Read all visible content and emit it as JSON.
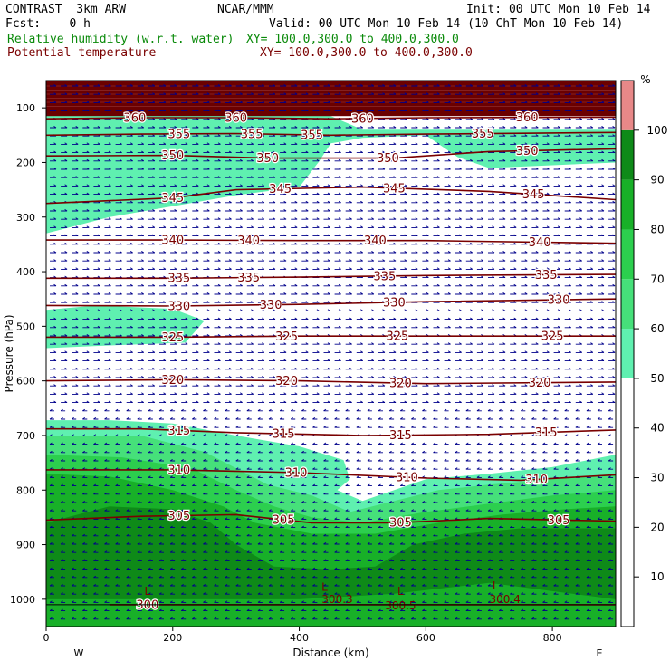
{
  "header": {
    "model": "CONTRAST  3km ARW",
    "org": "NCAR/MMM",
    "init": "Init: 00 UTC Mon 10 Feb 14",
    "fcst": "Fcst:    0 h",
    "valid": "Valid: 00 UTC Mon 10 Feb 14 (10 ChT Mon 10 Feb 14)",
    "field1_name": "Relative humidity (w.r.t. water)",
    "field1_xy": "XY= 100.0,300.0 to 400.0,300.0",
    "field2_name": "Potential temperature",
    "field2_xy": "XY= 100.0,300.0 to 400.0,300.0"
  },
  "colors": {
    "rh_green_text": "#0a8a0a",
    "theta_text": "#7a0000",
    "theta_line": "#7a0000",
    "wind_arrow": "#00008b",
    "rh_50": "#5ff0b0",
    "rh_60": "#46e07a",
    "rh_70": "#2ccf4e",
    "rh_80": "#18b028",
    "rh_90": "#0e8a18",
    "rh_100": "#e88888",
    "top_band": "#6b0000"
  },
  "chart_data": {
    "type": "cross-section",
    "title": "",
    "xlabel": "Distance (km)",
    "ylabel": "Pressure (hPa)",
    "xlim": [
      0,
      900
    ],
    "ylim": [
      1050,
      50
    ],
    "x_ticks": [
      0,
      200,
      400,
      600,
      800
    ],
    "y_ticks": [
      100,
      200,
      300,
      400,
      500,
      600,
      700,
      800,
      900,
      1000
    ],
    "x_end_labels": {
      "left": "W",
      "right": "E"
    },
    "colorbar": {
      "unit": "%",
      "ticks": [
        10,
        20,
        30,
        40,
        50,
        60,
        70,
        80,
        90,
        100
      ]
    },
    "theta_contours": [
      {
        "value": 360,
        "label": "360",
        "points": [
          [
            0,
            120
          ],
          [
            150,
            118
          ],
          [
            300,
            118
          ],
          [
            450,
            120
          ],
          [
            600,
            118
          ],
          [
            900,
            117
          ]
        ],
        "label_x": [
          140,
          300,
          500,
          760
        ]
      },
      {
        "value": 355,
        "label": "355",
        "points": [
          [
            0,
            150
          ],
          [
            150,
            148
          ],
          [
            300,
            147
          ],
          [
            450,
            150
          ],
          [
            600,
            148
          ],
          [
            900,
            145
          ]
        ],
        "label_x": [
          210,
          325,
          420,
          690
        ]
      },
      {
        "value": 350,
        "label": "350",
        "points": [
          [
            0,
            188
          ],
          [
            200,
            187
          ],
          [
            350,
            192
          ],
          [
            550,
            192
          ],
          [
            700,
            180
          ],
          [
            900,
            175
          ]
        ],
        "label_x": [
          200,
          350,
          540,
          760
        ]
      },
      {
        "value": 345,
        "label": "345",
        "points": [
          [
            0,
            275
          ],
          [
            200,
            265
          ],
          [
            300,
            250
          ],
          [
            500,
            245
          ],
          [
            700,
            253
          ],
          [
            900,
            268
          ]
        ],
        "label_x": [
          200,
          370,
          550,
          770
        ]
      },
      {
        "value": 340,
        "label": "340",
        "points": [
          [
            0,
            342
          ],
          [
            200,
            342
          ],
          [
            400,
            343
          ],
          [
            600,
            343
          ],
          [
            900,
            348
          ]
        ],
        "label_x": [
          200,
          320,
          520,
          780
        ]
      },
      {
        "value": 335,
        "label": "335",
        "points": [
          [
            0,
            412
          ],
          [
            200,
            412
          ],
          [
            400,
            410
          ],
          [
            600,
            407
          ],
          [
            900,
            405
          ]
        ],
        "label_x": [
          210,
          320,
          535,
          790
        ]
      },
      {
        "value": 330,
        "label": "330",
        "points": [
          [
            0,
            462
          ],
          [
            200,
            463
          ],
          [
            400,
            460
          ],
          [
            600,
            455
          ],
          [
            900,
            450
          ]
        ],
        "label_x": [
          210,
          355,
          550,
          810
        ]
      },
      {
        "value": 325,
        "label": "325",
        "points": [
          [
            0,
            520
          ],
          [
            200,
            520
          ],
          [
            400,
            518
          ],
          [
            600,
            518
          ],
          [
            900,
            518
          ]
        ],
        "label_x": [
          200,
          380,
          555,
          800
        ]
      },
      {
        "value": 320,
        "label": "320",
        "points": [
          [
            0,
            600
          ],
          [
            200,
            598
          ],
          [
            400,
            600
          ],
          [
            600,
            605
          ],
          [
            900,
            602
          ]
        ],
        "label_x": [
          200,
          380,
          560,
          780
        ]
      },
      {
        "value": 315,
        "label": "315",
        "points": [
          [
            0,
            688
          ],
          [
            150,
            688
          ],
          [
            300,
            695
          ],
          [
            500,
            700
          ],
          [
            700,
            698
          ],
          [
            900,
            690
          ]
        ],
        "label_x": [
          210,
          375,
          560,
          790
        ]
      },
      {
        "value": 310,
        "label": "310",
        "points": [
          [
            0,
            763
          ],
          [
            200,
            763
          ],
          [
            400,
            768
          ],
          [
            600,
            778
          ],
          [
            750,
            782
          ],
          [
            900,
            772
          ]
        ],
        "label_x": [
          210,
          395,
          570,
          775
        ]
      },
      {
        "value": 305,
        "label": "305",
        "points": [
          [
            0,
            855
          ],
          [
            150,
            848
          ],
          [
            300,
            845
          ],
          [
            420,
            860
          ],
          [
            550,
            860
          ],
          [
            700,
            852
          ],
          [
            900,
            857
          ]
        ],
        "label_x": [
          210,
          375,
          560,
          810
        ]
      },
      {
        "value": 300,
        "label": "300",
        "points": [
          [
            100,
            1010
          ],
          [
            200,
            1010
          ],
          [
            500,
            1010
          ],
          [
            900,
            1010
          ]
        ],
        "label_x": [
          160
        ]
      }
    ],
    "theta_annotations": [
      {
        "label": "300.3",
        "x": 460,
        "p": 1000
      },
      {
        "label": "300.5",
        "x": 560,
        "p": 1012
      },
      {
        "label": "300.4",
        "x": 725,
        "p": 1000
      }
    ],
    "low_markers": [
      {
        "label": "L",
        "x": 160,
        "p": 985
      },
      {
        "label": "L",
        "x": 440,
        "p": 978
      },
      {
        "label": "L",
        "x": 560,
        "p": 985
      },
      {
        "label": "L",
        "x": 710,
        "p": 975
      }
    ],
    "rh_regions": [
      {
        "level": 50,
        "points": [
          [
            0,
            90
          ],
          [
            200,
            90
          ],
          [
            400,
            90
          ],
          [
            500,
            140
          ],
          [
            600,
            140
          ],
          [
            900,
            140
          ],
          [
            900,
            200
          ],
          [
            800,
            205
          ],
          [
            700,
            210
          ],
          [
            700,
            210
          ],
          [
            650,
            190
          ],
          [
            600,
            150
          ],
          [
            500,
            155
          ],
          [
            450,
            165
          ],
          [
            430,
            200
          ],
          [
            400,
            245
          ],
          [
            300,
            260
          ],
          [
            200,
            280
          ],
          [
            100,
            300
          ],
          [
            0,
            330
          ]
        ]
      },
      {
        "level": 50,
        "points": [
          [
            0,
            470
          ],
          [
            80,
            462
          ],
          [
            200,
            468
          ],
          [
            250,
            490
          ],
          [
            220,
            530
          ],
          [
            100,
            535
          ],
          [
            0,
            540
          ]
        ]
      },
      {
        "level": 50,
        "points": [
          [
            0,
            672
          ],
          [
            100,
            672
          ],
          [
            200,
            678
          ],
          [
            300,
            700
          ],
          [
            400,
            720
          ],
          [
            470,
            745
          ],
          [
            480,
            780
          ],
          [
            460,
            800
          ],
          [
            500,
            820
          ],
          [
            600,
            780
          ],
          [
            700,
            770
          ],
          [
            800,
            758
          ],
          [
            900,
            735
          ],
          [
            900,
            1050
          ],
          [
            0,
            1050
          ]
        ]
      },
      {
        "level": 60,
        "points": [
          [
            0,
            700
          ],
          [
            150,
            700
          ],
          [
            250,
            730
          ],
          [
            300,
            760
          ],
          [
            350,
            790
          ],
          [
            420,
            810
          ],
          [
            480,
            840
          ],
          [
            550,
            820
          ],
          [
            620,
            800
          ],
          [
            700,
            790
          ],
          [
            800,
            780
          ],
          [
            900,
            770
          ],
          [
            900,
            1050
          ],
          [
            0,
            1050
          ]
        ]
      },
      {
        "level": 70,
        "points": [
          [
            0,
            735
          ],
          [
            120,
            740
          ],
          [
            230,
            760
          ],
          [
            300,
            800
          ],
          [
            360,
            830
          ],
          [
            420,
            850
          ],
          [
            500,
            860
          ],
          [
            600,
            840
          ],
          [
            700,
            825
          ],
          [
            800,
            810
          ],
          [
            900,
            800
          ],
          [
            900,
            1050
          ],
          [
            0,
            1050
          ]
        ]
      },
      {
        "level": 80,
        "points": [
          [
            0,
            770
          ],
          [
            100,
            775
          ],
          [
            200,
            800
          ],
          [
            280,
            830
          ],
          [
            330,
            860
          ],
          [
            420,
            880
          ],
          [
            520,
            880
          ],
          [
            620,
            860
          ],
          [
            720,
            845
          ],
          [
            820,
            835
          ],
          [
            900,
            830
          ],
          [
            900,
            1050
          ],
          [
            0,
            1050
          ]
        ]
      },
      {
        "level": 90,
        "points": [
          [
            0,
            860
          ],
          [
            100,
            830
          ],
          [
            200,
            835
          ],
          [
            260,
            860
          ],
          [
            300,
            900
          ],
          [
            360,
            940
          ],
          [
            450,
            945
          ],
          [
            520,
            940
          ],
          [
            580,
            900
          ],
          [
            660,
            880
          ],
          [
            750,
            870
          ],
          [
            850,
            870
          ],
          [
            900,
            870
          ],
          [
            900,
            1000
          ],
          [
            700,
            970
          ],
          [
            550,
            990
          ],
          [
            400,
            1000
          ],
          [
            200,
            1000
          ],
          [
            0,
            1000
          ]
        ]
      }
    ],
    "wind_note": "",
    "grid": false,
    "legend": "colorbar-right"
  }
}
